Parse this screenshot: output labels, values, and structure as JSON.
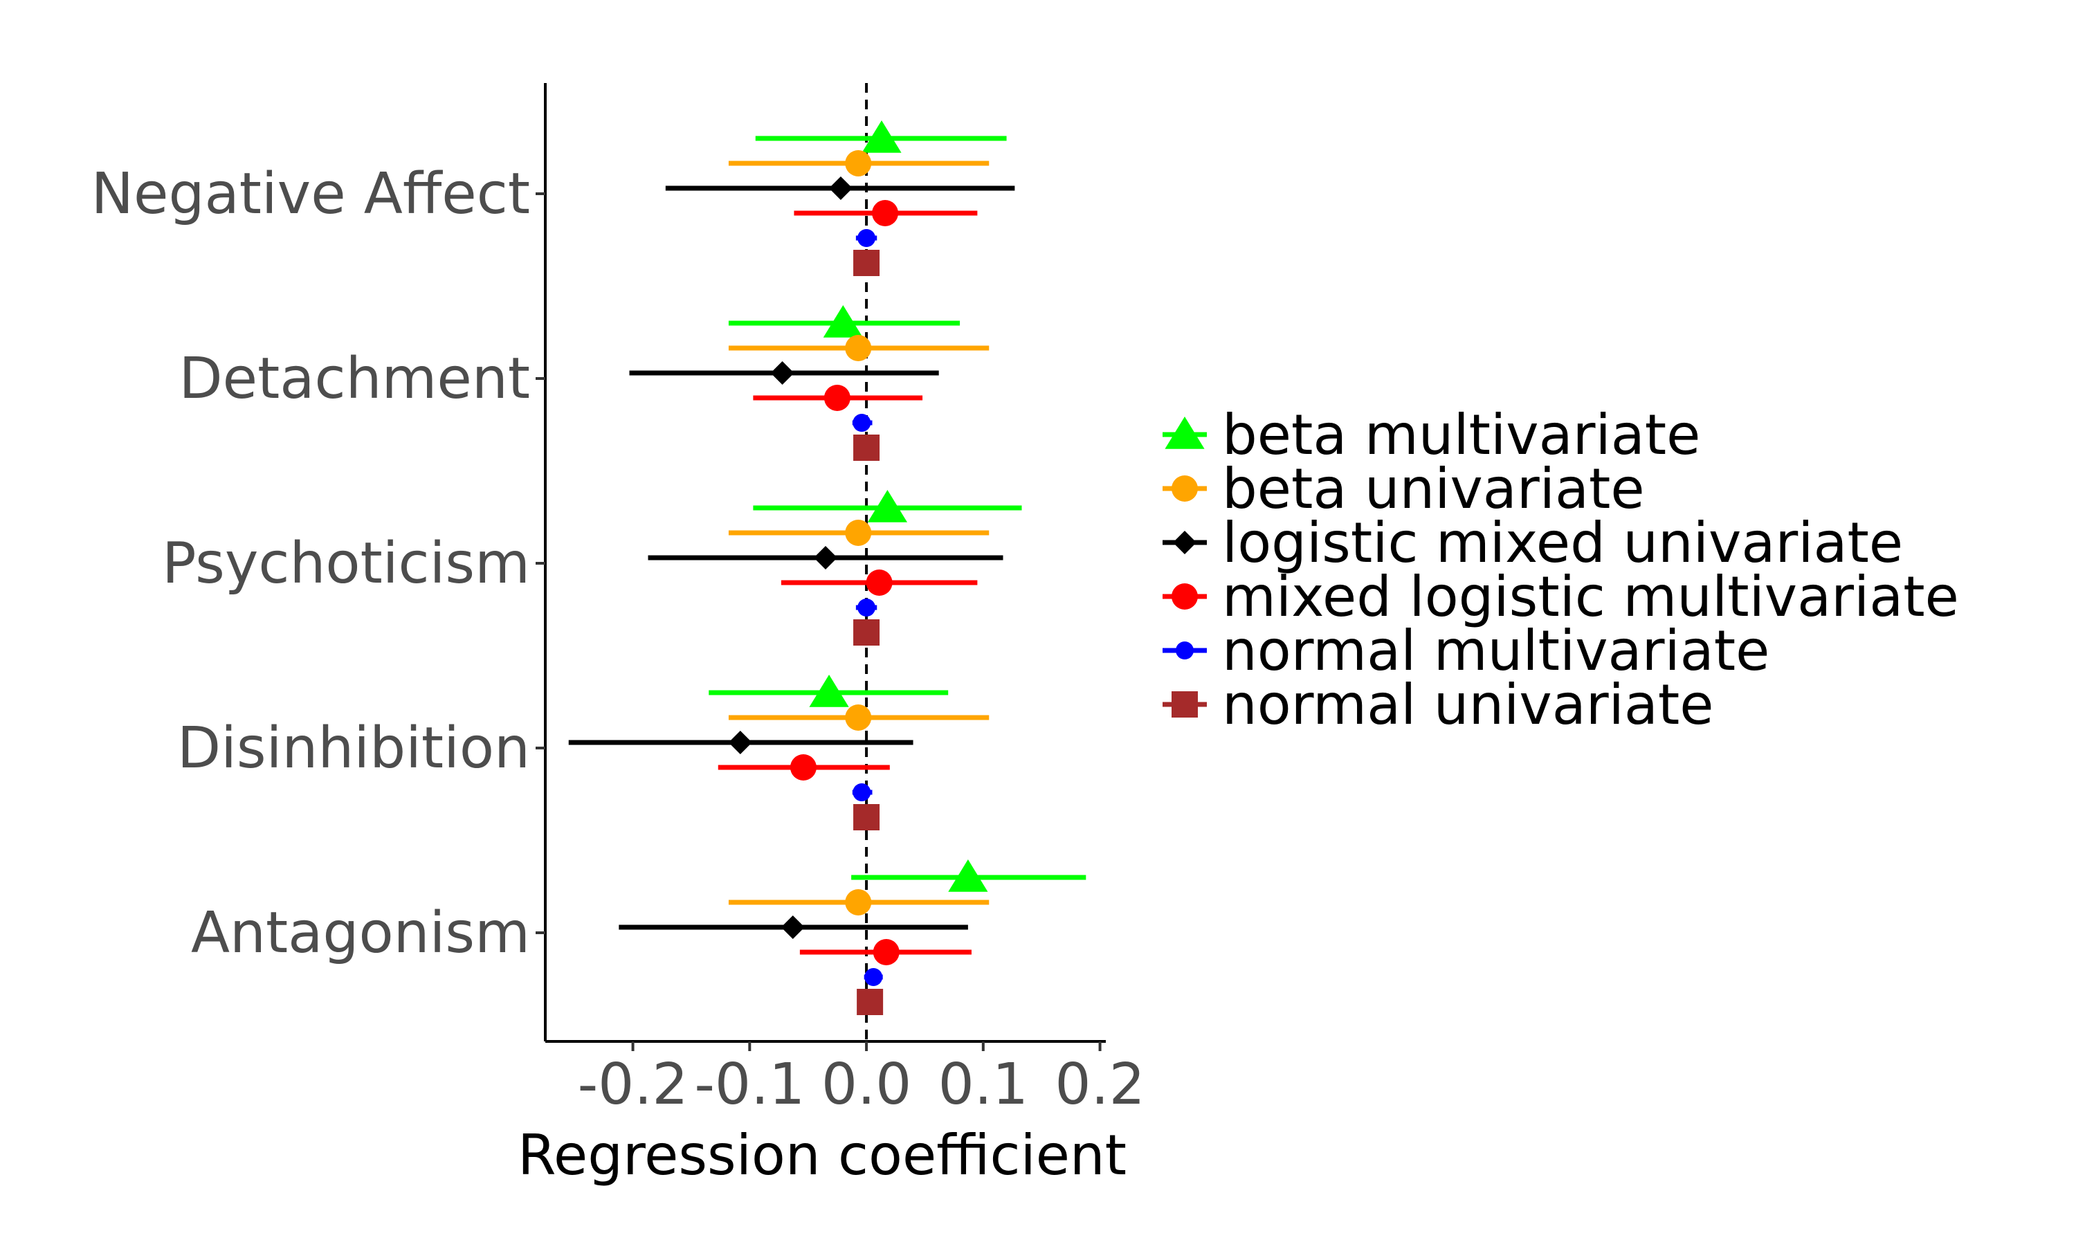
{
  "chart_data": {
    "type": "scatter",
    "subtype": "forest-plot",
    "title": "",
    "xlabel": "Regression coefficient",
    "ylabel": "",
    "xlim": [
      -0.275,
      0.205
    ],
    "xticks": [
      -0.2,
      -0.1,
      0.0,
      0.1,
      0.2
    ],
    "xtick_labels": [
      "-0.2",
      "-0.1",
      "0.0",
      "0.1",
      "0.2"
    ],
    "reference_line": 0,
    "grid": false,
    "legend_position": "right",
    "categories": [
      "Negative Affect",
      "Detachment",
      "Psychoticism",
      "Disinhibition",
      "Antagonism"
    ],
    "series": [
      {
        "name": "beta multivariate",
        "color": "#00ff00",
        "marker": "triangle",
        "estimate": [
          0.013,
          -0.02,
          0.018,
          -0.032,
          0.087
        ],
        "lower": [
          -0.095,
          -0.118,
          -0.097,
          -0.135,
          -0.013
        ],
        "upper": [
          0.12,
          0.08,
          0.133,
          0.07,
          0.188
        ]
      },
      {
        "name": "beta univariate",
        "color": "#ffa500",
        "marker": "circle",
        "estimate": [
          -0.007,
          -0.007,
          -0.007,
          -0.007,
          -0.007
        ],
        "lower": [
          -0.118,
          -0.118,
          -0.118,
          -0.118,
          -0.118
        ],
        "upper": [
          0.105,
          0.105,
          0.105,
          0.105,
          0.105
        ]
      },
      {
        "name": "logistic mixed univariate",
        "color": "#000000",
        "marker": "diamond",
        "estimate": [
          -0.022,
          -0.072,
          -0.035,
          -0.108,
          -0.063
        ],
        "lower": [
          -0.172,
          -0.203,
          -0.187,
          -0.255,
          -0.212
        ],
        "upper": [
          0.127,
          0.062,
          0.117,
          0.04,
          0.087
        ]
      },
      {
        "name": "mixed logistic multivariate",
        "color": "#ff0000",
        "marker": "circle",
        "estimate": [
          0.016,
          -0.025,
          0.011,
          -0.054,
          0.017
        ],
        "lower": [
          -0.062,
          -0.097,
          -0.073,
          -0.127,
          -0.057
        ],
        "upper": [
          0.095,
          0.048,
          0.095,
          0.02,
          0.09
        ]
      },
      {
        "name": "normal multivariate",
        "color": "#0000ff",
        "marker": "small-circle",
        "estimate": [
          0.0,
          -0.004,
          0.0,
          -0.004,
          0.006
        ],
        "lower": [
          -0.009,
          -0.012,
          -0.009,
          -0.012,
          -0.002
        ],
        "upper": [
          0.009,
          0.005,
          0.009,
          0.005,
          0.014
        ]
      },
      {
        "name": "normal univariate",
        "color": "#a52a2a",
        "marker": "square",
        "estimate": [
          0.0,
          0.0,
          0.0,
          0.0,
          0.003
        ],
        "lower": [
          -0.005,
          -0.005,
          -0.005,
          -0.005,
          -0.002
        ],
        "upper": [
          0.005,
          0.005,
          0.005,
          0.005,
          0.008
        ]
      }
    ]
  }
}
